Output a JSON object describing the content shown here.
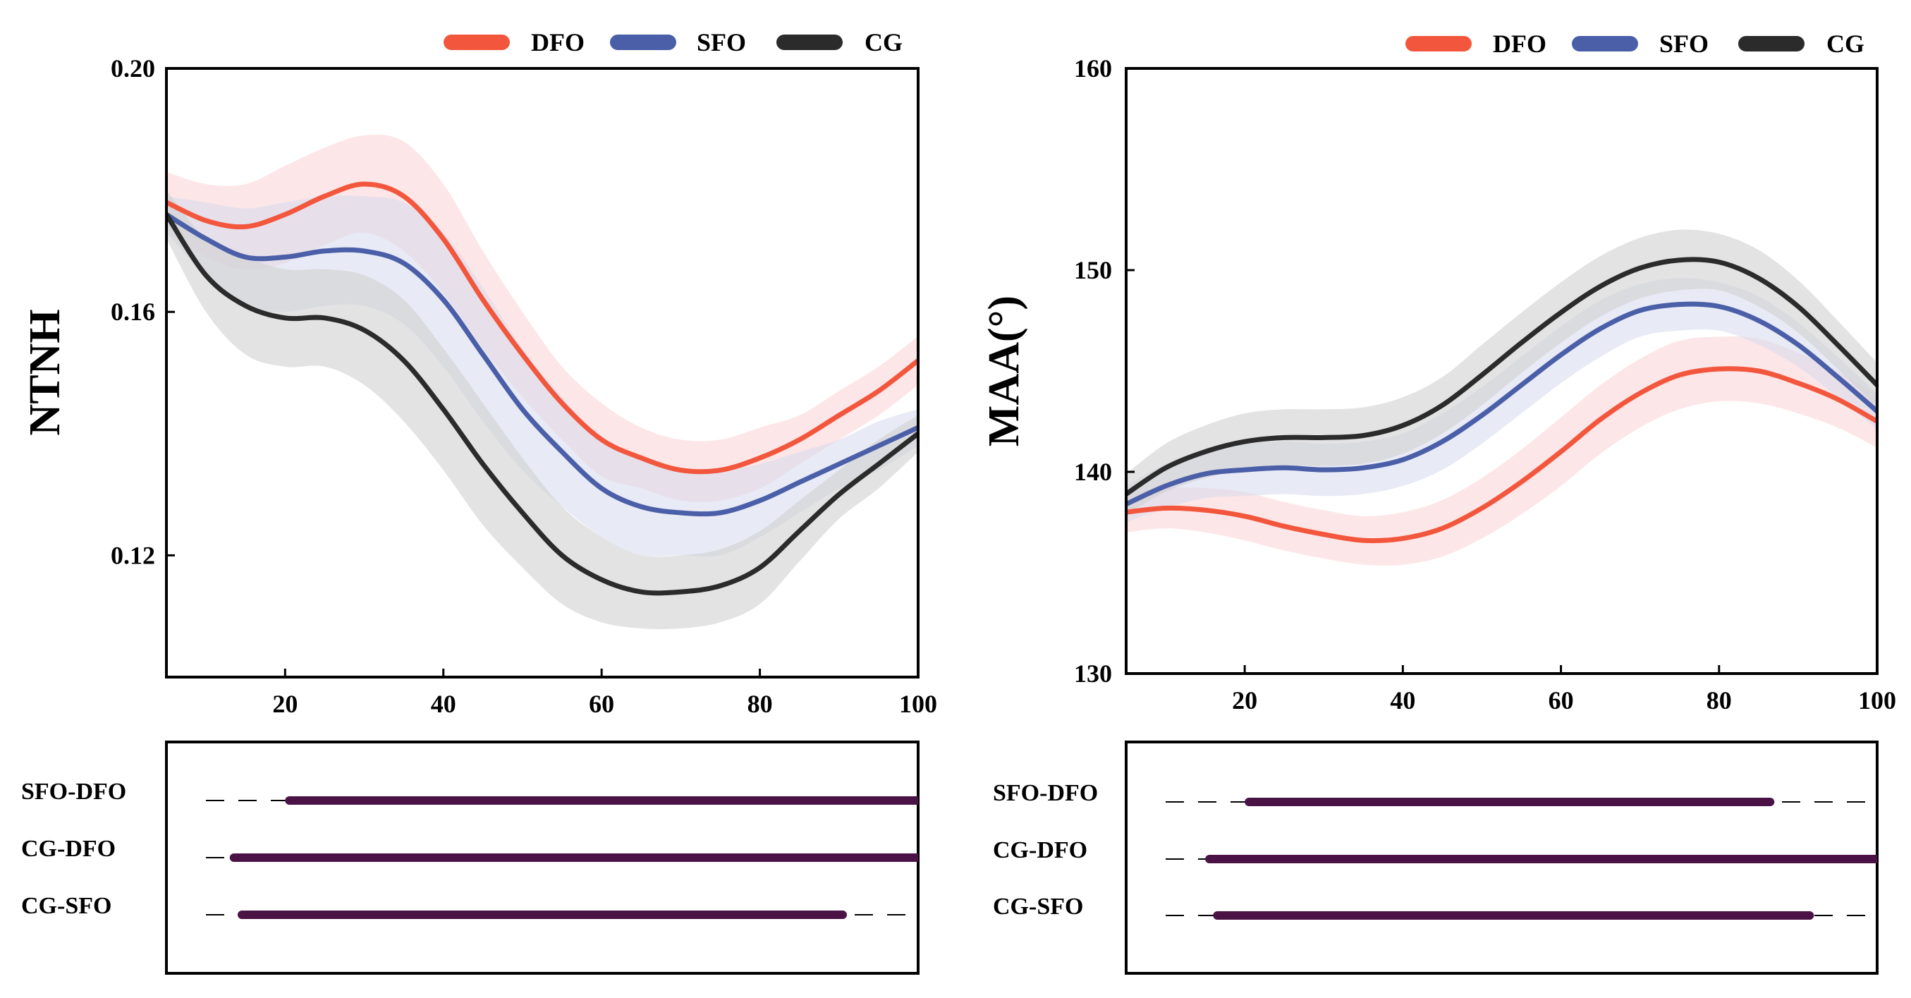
{
  "chart_data": [
    {
      "id": "ntnh",
      "type": "line",
      "ylabel": "NTNH",
      "xlabel": "",
      "xlim": [
        5,
        100
      ],
      "ylim": [
        0.1,
        0.2
      ],
      "xticks": [
        20,
        40,
        60,
        80,
        100
      ],
      "yticks": [
        0.12,
        0.16,
        0.2
      ],
      "ytick_labels": [
        "0.12",
        "0.16",
        "0.20"
      ],
      "legend_position": "top-right",
      "series": [
        {
          "name": "DFO",
          "color": "#f2573d",
          "band_color": "#fbd5d7",
          "x": [
            5,
            10,
            15,
            20,
            25,
            30,
            35,
            40,
            45,
            50,
            55,
            60,
            65,
            70,
            75,
            80,
            85,
            90,
            95,
            100
          ],
          "mean": [
            0.178,
            0.175,
            0.174,
            0.176,
            0.179,
            0.181,
            0.179,
            0.172,
            0.162,
            0.153,
            0.145,
            0.139,
            0.136,
            0.134,
            0.134,
            0.136,
            0.139,
            0.143,
            0.147,
            0.152
          ],
          "sd": [
            0.005,
            0.006,
            0.007,
            0.008,
            0.008,
            0.008,
            0.009,
            0.009,
            0.008,
            0.007,
            0.006,
            0.006,
            0.005,
            0.005,
            0.005,
            0.005,
            0.004,
            0.004,
            0.004,
            0.004
          ]
        },
        {
          "name": "SFO",
          "color": "#4a5fa8",
          "band_color": "#d8dcef",
          "x": [
            5,
            10,
            15,
            20,
            25,
            30,
            35,
            40,
            45,
            50,
            55,
            60,
            65,
            70,
            75,
            80,
            85,
            90,
            95,
            100
          ],
          "mean": [
            0.176,
            0.172,
            0.169,
            0.169,
            0.17,
            0.17,
            0.168,
            0.162,
            0.153,
            0.144,
            0.137,
            0.131,
            0.128,
            0.127,
            0.127,
            0.129,
            0.132,
            0.135,
            0.138,
            0.141
          ],
          "sd": [
            0.003,
            0.006,
            0.008,
            0.009,
            0.009,
            0.009,
            0.01,
            0.011,
            0.011,
            0.01,
            0.009,
            0.008,
            0.008,
            0.007,
            0.007,
            0.006,
            0.005,
            0.004,
            0.004,
            0.003
          ]
        },
        {
          "name": "CG",
          "color": "#2b2b2b",
          "band_color": "#d0d0d0",
          "x": [
            5,
            10,
            15,
            20,
            25,
            30,
            35,
            40,
            45,
            50,
            55,
            60,
            65,
            70,
            75,
            80,
            85,
            90,
            95,
            100
          ],
          "mean": [
            0.176,
            0.166,
            0.161,
            0.159,
            0.159,
            0.157,
            0.152,
            0.144,
            0.135,
            0.127,
            0.12,
            0.116,
            0.114,
            0.114,
            0.115,
            0.118,
            0.124,
            0.13,
            0.135,
            0.14
          ],
          "sd": [
            0.004,
            0.006,
            0.008,
            0.008,
            0.008,
            0.009,
            0.01,
            0.01,
            0.01,
            0.009,
            0.008,
            0.007,
            0.006,
            0.006,
            0.006,
            0.006,
            0.005,
            0.004,
            0.004,
            0.003
          ]
        }
      ],
      "significance": {
        "xlim": [
          5,
          100
        ],
        "rows": [
          {
            "label": "SFO-DFO",
            "segments": [
              [
                20,
                100
              ]
            ]
          },
          {
            "label": "CG-DFO",
            "segments": [
              [
                13,
                100
              ]
            ]
          },
          {
            "label": "CG-SFO",
            "segments": [
              [
                14,
                91
              ]
            ]
          }
        ]
      }
    },
    {
      "id": "maa",
      "type": "line",
      "ylabel": "MAA(°)",
      "xlabel": "",
      "xlim": [
        5,
        100
      ],
      "ylim": [
        130,
        160
      ],
      "xticks": [
        20,
        40,
        60,
        80,
        100
      ],
      "yticks": [
        130,
        140,
        150,
        160
      ],
      "ytick_labels": [
        "130",
        "140",
        "150",
        "160"
      ],
      "legend_position": "top-right",
      "series": [
        {
          "name": "DFO",
          "color": "#f2573d",
          "band_color": "#fbd5d7",
          "x": [
            5,
            10,
            15,
            20,
            25,
            30,
            35,
            40,
            45,
            50,
            55,
            60,
            65,
            70,
            75,
            80,
            85,
            90,
            95,
            100
          ],
          "mean": [
            138.0,
            138.2,
            138.1,
            137.8,
            137.3,
            136.9,
            136.6,
            136.7,
            137.2,
            138.2,
            139.5,
            141.0,
            142.6,
            143.9,
            144.8,
            145.1,
            145.0,
            144.4,
            143.6,
            142.5
          ],
          "sd": [
            1.0,
            1.0,
            1.1,
            1.2,
            1.2,
            1.2,
            1.2,
            1.3,
            1.4,
            1.5,
            1.6,
            1.7,
            1.7,
            1.7,
            1.7,
            1.6,
            1.6,
            1.5,
            1.4,
            1.3
          ]
        },
        {
          "name": "SFO",
          "color": "#4a5fa8",
          "band_color": "#d8dcef",
          "x": [
            5,
            10,
            15,
            20,
            25,
            30,
            35,
            40,
            45,
            50,
            55,
            60,
            65,
            70,
            75,
            80,
            85,
            90,
            95,
            100
          ],
          "mean": [
            138.4,
            139.3,
            139.9,
            140.1,
            140.2,
            140.1,
            140.2,
            140.6,
            141.5,
            142.8,
            144.3,
            145.8,
            147.1,
            148.0,
            148.3,
            148.2,
            147.5,
            146.3,
            144.7,
            143.0
          ],
          "sd": [
            0.9,
            1.1,
            1.2,
            1.3,
            1.3,
            1.3,
            1.3,
            1.3,
            1.4,
            1.4,
            1.4,
            1.4,
            1.4,
            1.3,
            1.3,
            1.2,
            1.2,
            1.1,
            1.0,
            0.9
          ]
        },
        {
          "name": "CG",
          "color": "#2b2b2b",
          "band_color": "#d0d0d0",
          "x": [
            5,
            10,
            15,
            20,
            25,
            30,
            35,
            40,
            45,
            50,
            55,
            60,
            65,
            70,
            75,
            80,
            85,
            90,
            95,
            100
          ],
          "mean": [
            138.9,
            140.2,
            141.0,
            141.5,
            141.7,
            141.7,
            141.8,
            142.3,
            143.3,
            144.8,
            146.4,
            147.9,
            149.2,
            150.1,
            150.5,
            150.4,
            149.6,
            148.2,
            146.3,
            144.3
          ],
          "sd": [
            1.0,
            1.2,
            1.3,
            1.4,
            1.4,
            1.4,
            1.4,
            1.4,
            1.4,
            1.5,
            1.5,
            1.5,
            1.5,
            1.5,
            1.5,
            1.4,
            1.4,
            1.3,
            1.2,
            1.1
          ]
        }
      ],
      "significance": {
        "xlim": [
          5,
          100
        ],
        "rows": [
          {
            "label": "SFO-DFO",
            "segments": [
              [
                20,
                87
              ]
            ]
          },
          {
            "label": "CG-DFO",
            "segments": [
              [
                15,
                100
              ]
            ]
          },
          {
            "label": "CG-SFO",
            "segments": [
              [
                16,
                92
              ]
            ]
          }
        ]
      }
    }
  ],
  "colors": {
    "significance_bar": "#4a1245",
    "axis": "#000000",
    "dash": "#000000"
  }
}
